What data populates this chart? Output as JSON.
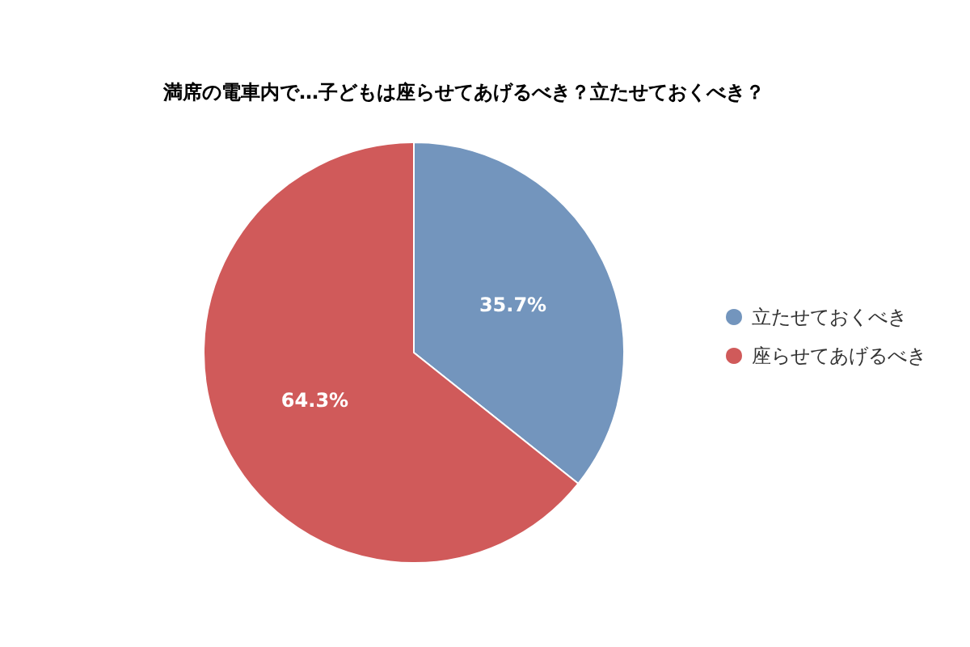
{
  "chart_data": {
    "type": "pie",
    "title": "満席の電車内で…子どもは座らせてあげるべき？立たせておくべき？",
    "categories": [
      "立たせておくべき",
      "座らせてあげるべき"
    ],
    "values": [
      35.7,
      64.3
    ],
    "value_labels": [
      "35.7%",
      "64.3%"
    ],
    "colors": [
      "#7395bd",
      "#d05a5a"
    ],
    "legend": "right"
  }
}
